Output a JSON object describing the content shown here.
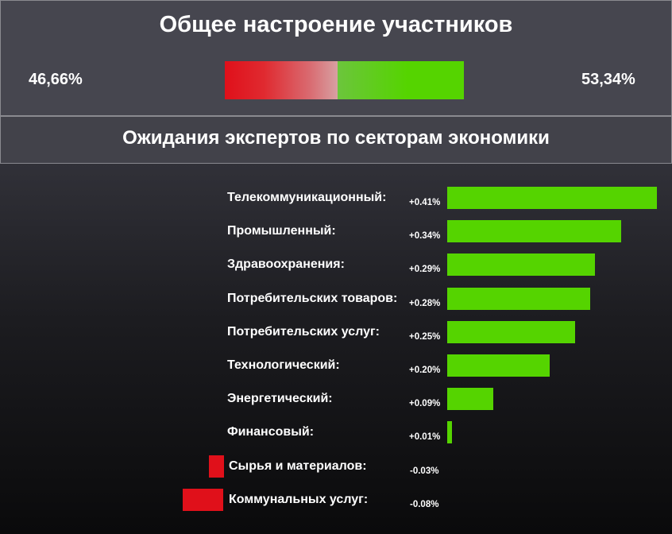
{
  "header": {
    "title": "Общее настроение участников",
    "negative_pct": "46,66%",
    "positive_pct": "53,34%"
  },
  "mood": {
    "negative": 46.66,
    "positive": 53.34
  },
  "colors": {
    "positive": "#55d400",
    "negative": "#e0101a"
  },
  "chart_data": {
    "type": "bar",
    "orientation": "horizontal",
    "title": "Ожидания экспертов по секторам экономики",
    "categories": [
      "Телекоммуникационный:",
      "Промышленный:",
      "Здравоохранения:",
      "Потребительских товаров:",
      "Потребительских услуг:",
      "Технологический:",
      "Энергетический:",
      "Финансовый:",
      "Сырья и материалов:",
      "Коммунальных услуг:"
    ],
    "values": [
      0.41,
      0.34,
      0.29,
      0.28,
      0.25,
      0.2,
      0.09,
      0.01,
      -0.03,
      -0.08
    ],
    "value_labels": [
      "+0.41%",
      "+0.34%",
      "+0.29%",
      "+0.28%",
      "+0.25%",
      "+0.20%",
      "+0.09%",
      "+0.01%",
      "-0.03%",
      "-0.08%"
    ],
    "grid": false,
    "legend": "none"
  }
}
